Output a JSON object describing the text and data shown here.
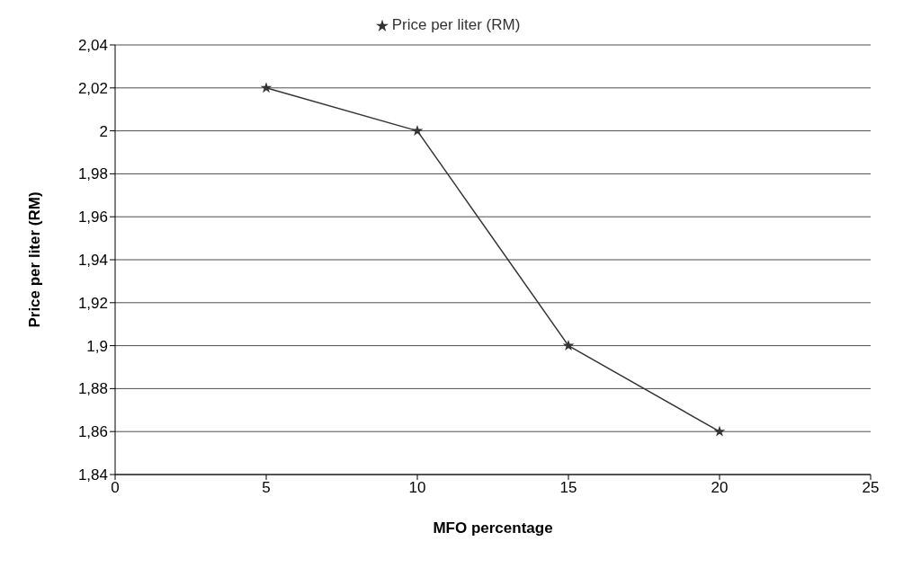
{
  "chart_data": {
    "type": "line",
    "xlabel": "MFO percentage",
    "ylabel": "Price per liter (RM)",
    "x": [
      5,
      10,
      15,
      20
    ],
    "series": [
      {
        "name": "Price per liter (RM)",
        "color": "#333333",
        "values": [
          2.02,
          2.0,
          1.9,
          1.86
        ]
      }
    ],
    "xlim": [
      0,
      25
    ],
    "xticks": [
      0,
      5,
      10,
      15,
      20,
      25
    ],
    "ylim": [
      1.84,
      2.04
    ],
    "yticks": [
      {
        "value": 1.84,
        "label": "1,84"
      },
      {
        "value": 1.86,
        "label": "1,86"
      },
      {
        "value": 1.88,
        "label": "1,88"
      },
      {
        "value": 1.9,
        "label": "1,9"
      },
      {
        "value": 1.92,
        "label": "1,92"
      },
      {
        "value": 1.94,
        "label": "1,94"
      },
      {
        "value": 1.96,
        "label": "1,96"
      },
      {
        "value": 1.98,
        "label": "1,98"
      },
      {
        "value": 2,
        "label": "2"
      },
      {
        "value": 2.02,
        "label": "2,02"
      },
      {
        "value": 2.04,
        "label": "2,04"
      }
    ],
    "grid": "y",
    "legend": "top",
    "marker": "star",
    "line_style": "solid"
  }
}
